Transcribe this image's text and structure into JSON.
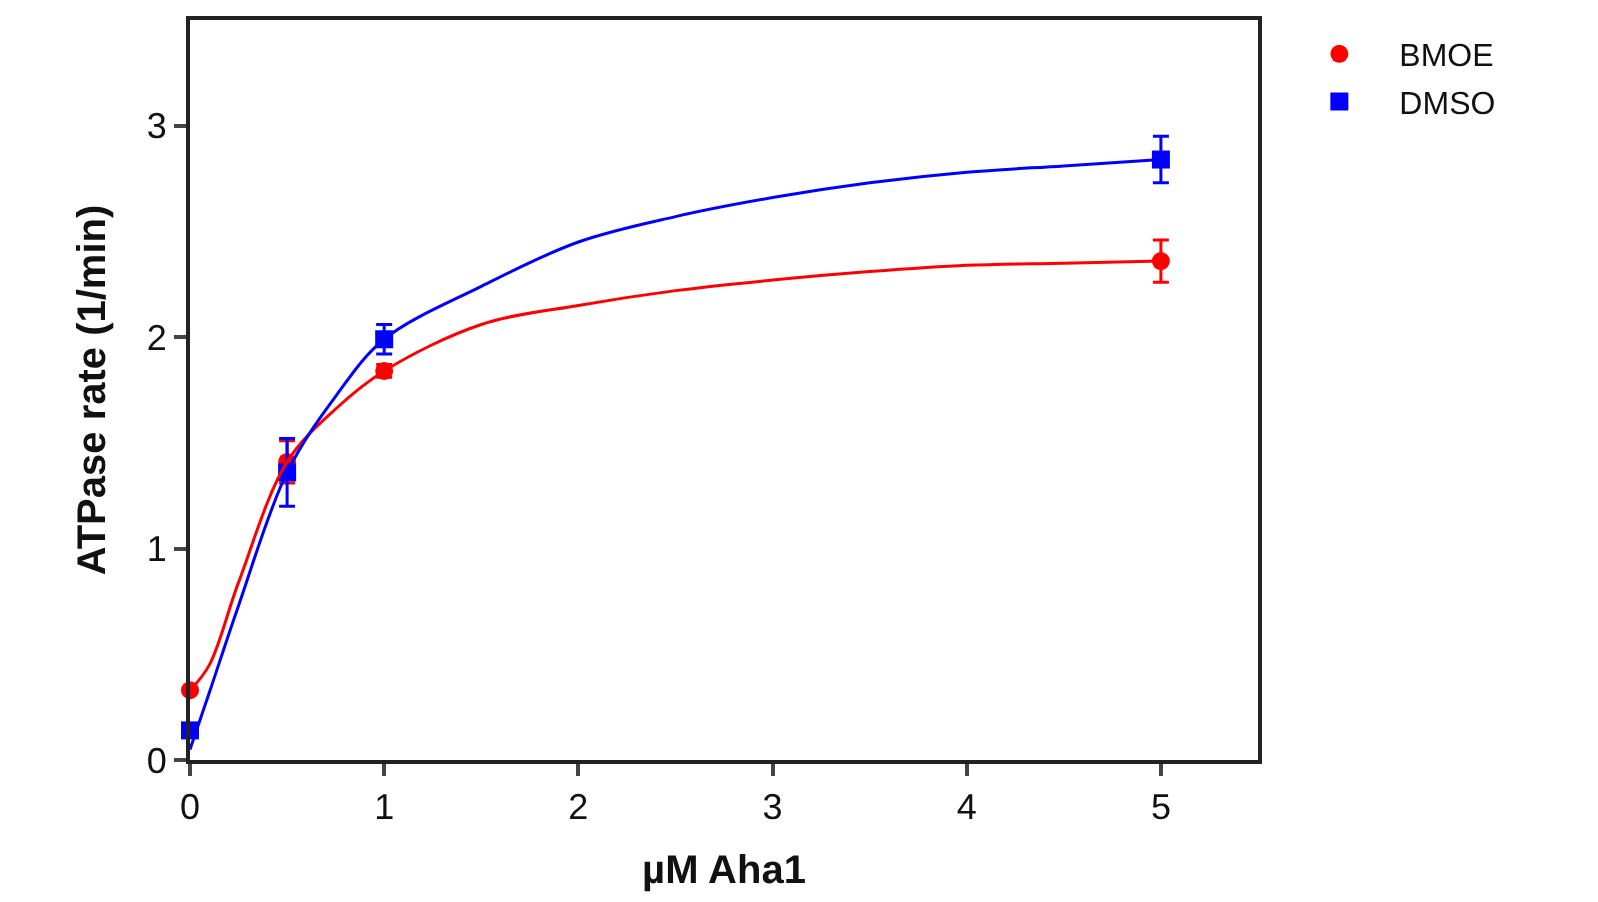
{
  "chart_data": {
    "type": "scatter",
    "xlabel": "µM Aha1",
    "ylabel": "ATPase rate (1/min)",
    "xlim": [
      0,
      5.5
    ],
    "xticks": [
      0,
      1,
      2,
      3,
      4,
      5
    ],
    "ylim": [
      0,
      3.5
    ],
    "yticks": [
      0,
      1,
      2,
      3
    ],
    "legend": "top right",
    "series": [
      {
        "name": "BMOE",
        "color": "#ff0000",
        "marker": "circle",
        "x": [
          0,
          0.5,
          1,
          5
        ],
        "values": [
          0.33,
          1.41,
          1.84,
          2.36
        ],
        "errors": [
          null,
          0.1,
          0.03,
          0.1
        ]
      },
      {
        "name": "DMSO",
        "color": "#0000ff",
        "marker": "square",
        "x": [
          0,
          0.5,
          1,
          5
        ],
        "values": [
          0.14,
          1.36,
          1.99,
          2.84
        ],
        "errors": [
          null,
          0.16,
          0.07,
          0.11
        ]
      },
      {
        "type": "line",
        "color": "#ff0000",
        "x": [
          0,
          0.1,
          0.25,
          0.5,
          0.75,
          1,
          1.5,
          2,
          2.5,
          3,
          3.5,
          4,
          4.5,
          5
        ],
        "values": [
          0.33,
          0.45,
          0.84,
          1.41,
          1.66,
          1.84,
          2.06,
          2.15,
          2.22,
          2.27,
          2.31,
          2.34,
          2.35,
          2.36
        ]
      },
      {
        "type": "line",
        "color": "#0000ff",
        "x": [
          0,
          0.1,
          0.25,
          0.5,
          0.75,
          1,
          1.5,
          2,
          2.5,
          3,
          3.5,
          4,
          4.5,
          5
        ],
        "values": [
          0.05,
          0.32,
          0.73,
          1.36,
          1.72,
          1.99,
          2.24,
          2.45,
          2.57,
          2.66,
          2.73,
          2.78,
          2.81,
          2.84
        ]
      }
    ]
  }
}
